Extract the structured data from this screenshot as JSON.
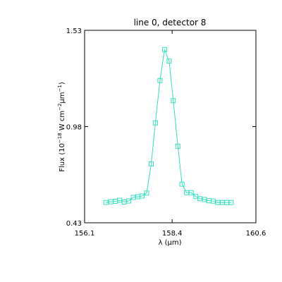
{
  "chart_data": {
    "type": "line",
    "title": "line 0, detector 8",
    "xlabel": "λ (µm)",
    "ylabel_parts": {
      "prefix": "Flux (10",
      "exp1": "−18",
      "mid": " W cm",
      "exp2": "−2",
      "mu": "µm",
      "exp3": "−1",
      "suffix": ")"
    },
    "xlim": [
      156.1,
      160.6
    ],
    "ylim": [
      0.43,
      1.53
    ],
    "x_ticks": [
      {
        "value": 156.1,
        "label": "156.1"
      },
      {
        "value": 158.4,
        "label": "158.4"
      },
      {
        "value": 160.6,
        "label": "160.6"
      }
    ],
    "y_ticks": [
      {
        "value": 0.43,
        "label": "0.43"
      },
      {
        "value": 0.98,
        "label": "0.98"
      },
      {
        "value": 1.53,
        "label": "1.53"
      }
    ],
    "grid": false,
    "series": [
      {
        "color": "#33e0c0",
        "marker": "open-square",
        "x": [
          156.66,
          156.79,
          156.91,
          157.02,
          157.14,
          157.26,
          157.38,
          157.5,
          157.61,
          157.73,
          157.85,
          157.96,
          158.08,
          158.2,
          158.32,
          158.43,
          158.55,
          158.66,
          158.78,
          158.9,
          159.02,
          159.13,
          159.25,
          159.37,
          159.48,
          159.6,
          159.72,
          159.83,
          159.95
        ],
        "y": [
          0.546,
          0.55,
          0.553,
          0.559,
          0.549,
          0.555,
          0.575,
          0.579,
          0.583,
          0.6,
          0.766,
          1.001,
          1.243,
          1.42,
          1.354,
          1.128,
          0.868,
          0.651,
          0.602,
          0.602,
          0.58,
          0.568,
          0.563,
          0.556,
          0.554,
          0.546,
          0.546,
          0.546,
          0.546
        ]
      }
    ]
  }
}
